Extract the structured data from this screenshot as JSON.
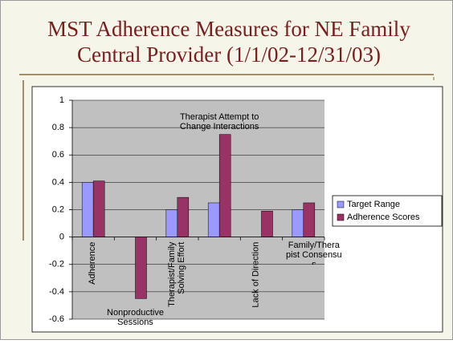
{
  "chart_data": {
    "type": "bar",
    "title": "MST Adherence Measures for NE Family Central Provider (1/1/02-12/31/03)",
    "categories": [
      "Adherence",
      "Nonproductive Sessions",
      "Therapist/Family Solving Effort",
      "Therapist Attempt to Change Interactions",
      "Lack of Direction",
      "Family/Therapist Consensus"
    ],
    "series": [
      {
        "name": "Target Range",
        "color": "#9999ff",
        "values": [
          0.4,
          0,
          0.2,
          0.25,
          0,
          0.2
        ]
      },
      {
        "name": "Adherence Scores",
        "color": "#993366",
        "values": [
          0.41,
          -0.45,
          0.29,
          0.75,
          0.19,
          0.25
        ]
      }
    ],
    "ylim": [
      -0.6,
      1
    ],
    "yticks": [
      -0.6,
      -0.4,
      -0.2,
      0,
      0.2,
      0.4,
      0.6,
      0.8,
      1
    ],
    "grid": true,
    "legend": "right"
  }
}
